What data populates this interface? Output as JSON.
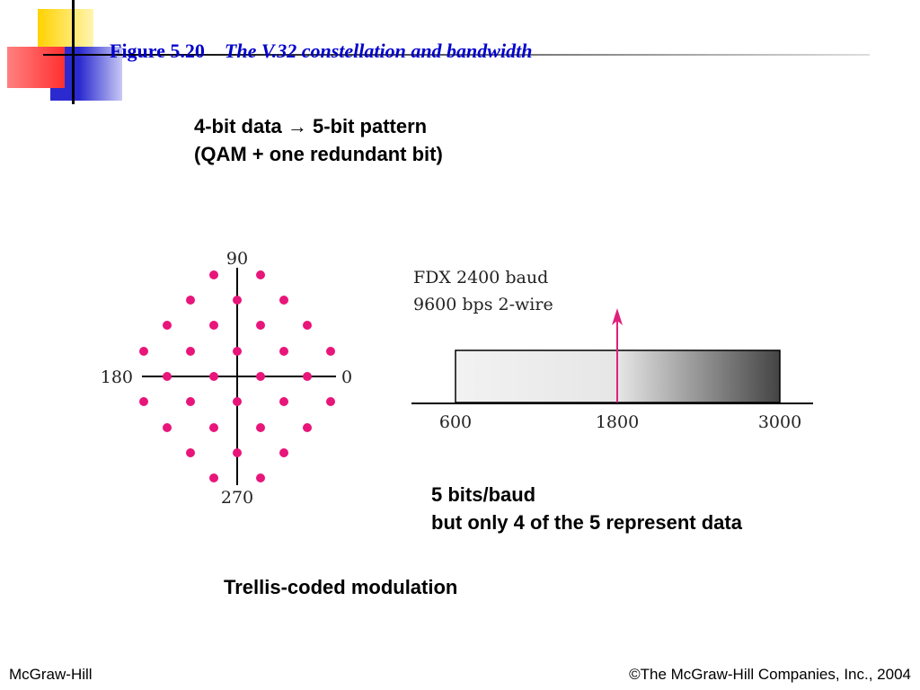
{
  "header": {
    "figure": "Figure 5.20",
    "title": "The V.32 constellation and bandwidth"
  },
  "intro": [
    "4-bit data → 5-bit pattern",
    "(QAM + one redundant bit)"
  ],
  "constellation": {
    "labels": {
      "top": "90",
      "left": "180",
      "right": "0",
      "bottom": "270"
    }
  },
  "bandwidth": {
    "lines": [
      "FDX 2400 baud",
      "9600 bps 2-wire"
    ],
    "axis_labels": [
      "600",
      "1800",
      "3000"
    ]
  },
  "note": [
    "5 bits/baud",
    "but only 4 of the 5 represent data"
  ],
  "caption": "Trellis-coded modulation",
  "footer": {
    "left": "McGraw-Hill",
    "right": "©The McGraw-Hill Companies, Inc., 2004"
  }
}
